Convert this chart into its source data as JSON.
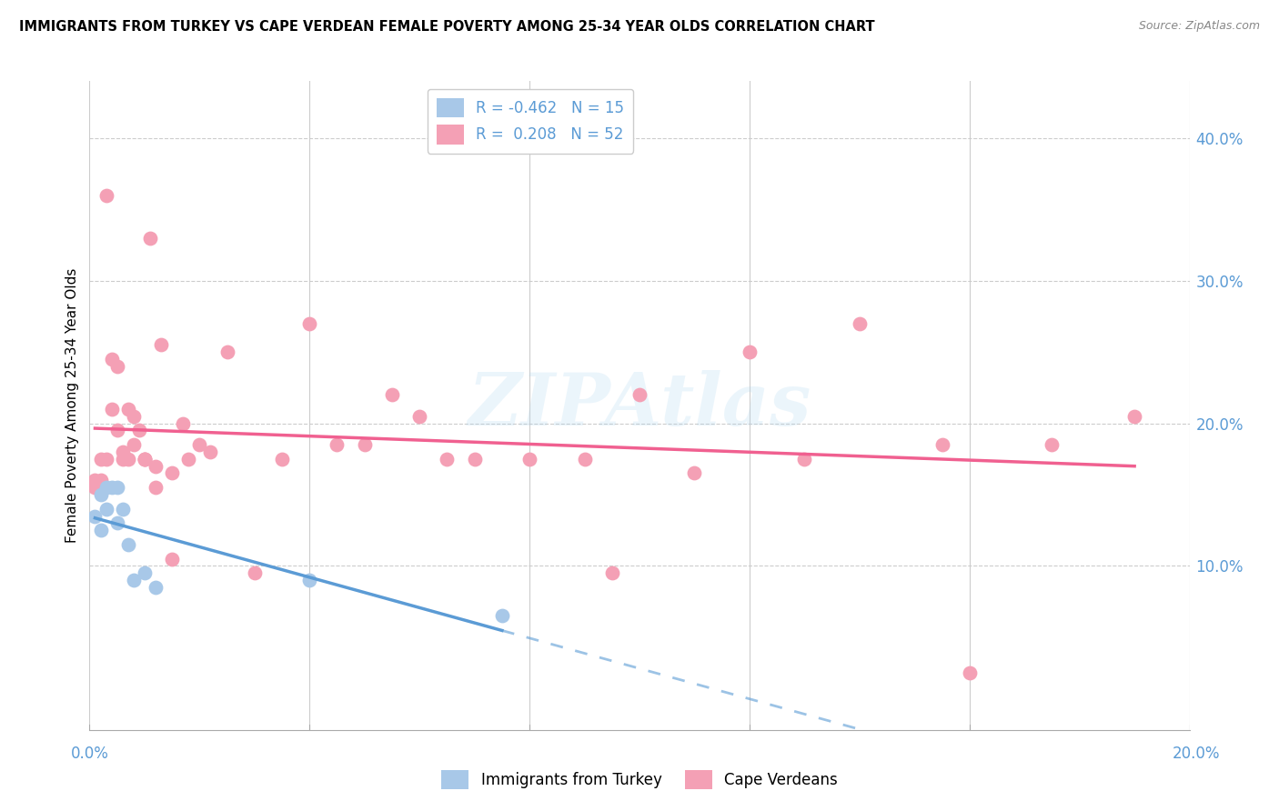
{
  "title": "IMMIGRANTS FROM TURKEY VS CAPE VERDEAN FEMALE POVERTY AMONG 25-34 YEAR OLDS CORRELATION CHART",
  "source": "Source: ZipAtlas.com",
  "ylabel": "Female Poverty Among 25-34 Year Olds",
  "xlim": [
    0.0,
    0.2
  ],
  "ylim": [
    -0.015,
    0.44
  ],
  "legend_r_turkey": "-0.462",
  "legend_n_turkey": "15",
  "legend_r_cape": "0.208",
  "legend_n_cape": "52",
  "turkey_color": "#a8c8e8",
  "cape_color": "#f4a0b5",
  "turkey_line_color": "#5b9bd5",
  "cape_line_color": "#f06090",
  "watermark": "ZIPAtlas",
  "turkey_scatter_x": [
    0.001,
    0.002,
    0.002,
    0.003,
    0.003,
    0.004,
    0.005,
    0.005,
    0.006,
    0.007,
    0.008,
    0.01,
    0.012,
    0.04,
    0.075
  ],
  "turkey_scatter_y": [
    0.135,
    0.125,
    0.15,
    0.14,
    0.155,
    0.155,
    0.13,
    0.155,
    0.14,
    0.115,
    0.09,
    0.095,
    0.085,
    0.09,
    0.065
  ],
  "cape_scatter_x": [
    0.001,
    0.001,
    0.002,
    0.002,
    0.003,
    0.003,
    0.004,
    0.004,
    0.005,
    0.005,
    0.006,
    0.006,
    0.007,
    0.007,
    0.008,
    0.008,
    0.009,
    0.01,
    0.01,
    0.01,
    0.011,
    0.012,
    0.012,
    0.013,
    0.015,
    0.015,
    0.017,
    0.018,
    0.02,
    0.022,
    0.025,
    0.03,
    0.035,
    0.04,
    0.045,
    0.05,
    0.055,
    0.06,
    0.065,
    0.07,
    0.08,
    0.09,
    0.095,
    0.1,
    0.11,
    0.12,
    0.13,
    0.14,
    0.155,
    0.16,
    0.175,
    0.19
  ],
  "cape_scatter_y": [
    0.155,
    0.16,
    0.175,
    0.16,
    0.36,
    0.175,
    0.245,
    0.21,
    0.195,
    0.24,
    0.18,
    0.175,
    0.21,
    0.175,
    0.205,
    0.185,
    0.195,
    0.175,
    0.175,
    0.175,
    0.33,
    0.17,
    0.155,
    0.255,
    0.165,
    0.105,
    0.2,
    0.175,
    0.185,
    0.18,
    0.25,
    0.095,
    0.175,
    0.27,
    0.185,
    0.185,
    0.22,
    0.205,
    0.175,
    0.175,
    0.175,
    0.175,
    0.095,
    0.22,
    0.165,
    0.25,
    0.175,
    0.27,
    0.185,
    0.025,
    0.185,
    0.205
  ],
  "y_tick_vals": [
    0.1,
    0.2,
    0.3,
    0.4
  ],
  "y_tick_labels": [
    "10.0%",
    "20.0%",
    "30.0%",
    "40.0%"
  ],
  "x_tick_positions": [
    0.0,
    0.04,
    0.08,
    0.12,
    0.16,
    0.2
  ],
  "tick_color": "#5b9bd5",
  "grid_color": "#cccccc",
  "spine_color": "#aaaaaa"
}
